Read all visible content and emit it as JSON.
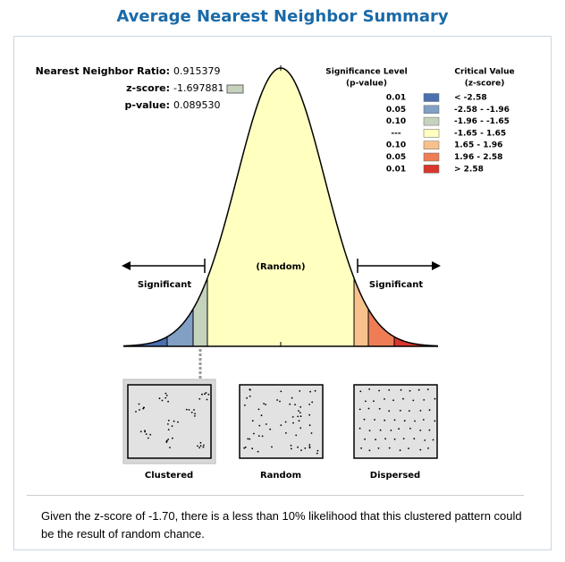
{
  "title": "Average Nearest Neighbor Summary",
  "stats": [
    {
      "label": "Nearest Neighbor Ratio:",
      "value": "0.915379"
    },
    {
      "label": "z-score:",
      "value": "-1.697881"
    },
    {
      "label": "p-value:",
      "value": "0.089530"
    }
  ],
  "legend": {
    "p_header": [
      "Significance Level",
      "(p-value)"
    ],
    "z_header": [
      "Critical Value",
      "(z-score)"
    ],
    "rows": [
      {
        "p": "0.01",
        "z": "< -2.58",
        "color": "#4a70b0"
      },
      {
        "p": "0.05",
        "z": "-2.58 - -1.96",
        "color": "#829fc4"
      },
      {
        "p": "0.10",
        "z": "-1.96 - -1.65",
        "color": "#c5d3bd"
      },
      {
        "p": "---",
        "z": "-1.65 - 1.65",
        "color": "#ffffc0"
      },
      {
        "p": "0.10",
        "z": "1.65 - 1.96",
        "color": "#f8c18c"
      },
      {
        "p": "0.05",
        "z": "1.96 - 2.58",
        "color": "#ee7d56"
      },
      {
        "p": "0.01",
        "z": "> 2.58",
        "color": "#d9372c"
      }
    ]
  },
  "curve_labels": {
    "center": "(Random)",
    "left": "Significant",
    "right": "Significant"
  },
  "patterns": [
    "Clustered",
    "Random",
    "Dispersed"
  ],
  "conclusion": "Given the z-score of -1.70, there is a less than 10% likelihood that this clustered pattern could be the result of random chance."
}
